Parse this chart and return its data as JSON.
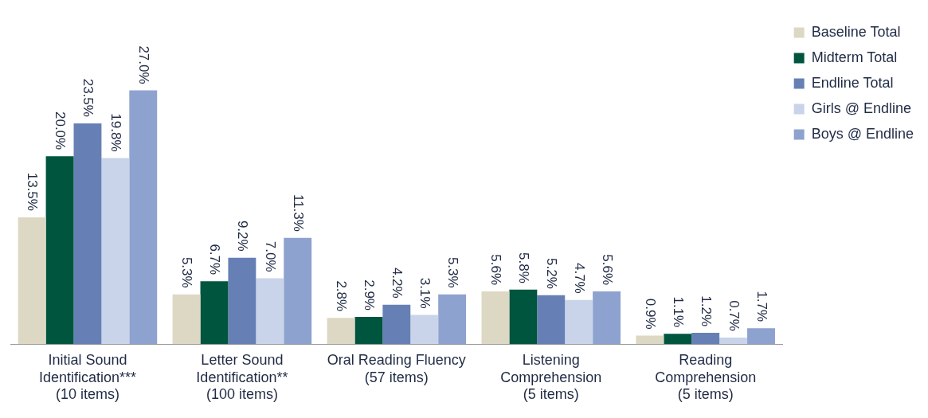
{
  "chart_data": {
    "type": "bar",
    "categories": [
      "Initial Sound\nIdentification***\n(10 items)",
      "Letter Sound\nIdentification**\n(100 items)",
      "Oral Reading Fluency\n(57 items)",
      "Listening\nComprehension\n(5 items)",
      "Reading\nComprehension\n(5 items)"
    ],
    "series": [
      {
        "name": "Baseline Total",
        "color": "#ddd8c4",
        "values": [
          13.5,
          5.3,
          2.8,
          5.6,
          0.9
        ],
        "value_labels": [
          "13.5%",
          "5.3%",
          "2.8%",
          "5.6%",
          "0.9%"
        ]
      },
      {
        "name": "Midterm Total",
        "color": "#00553f",
        "values": [
          20.0,
          6.7,
          2.9,
          5.8,
          1.1
        ],
        "value_labels": [
          "20.0%",
          "6.7%",
          "2.9%",
          "5.8%",
          "1.1%"
        ]
      },
      {
        "name": "Endline Total",
        "color": "#6680b5",
        "values": [
          23.5,
          9.2,
          4.2,
          5.2,
          1.2
        ],
        "value_labels": [
          "23.5%",
          "9.2%",
          "4.2%",
          "5.2%",
          "1.2%"
        ]
      },
      {
        "name": "Girls @ Endline",
        "color": "#c9d4ea",
        "values": [
          19.8,
          7.0,
          3.1,
          4.7,
          0.7
        ],
        "value_labels": [
          "19.8%",
          "7.0%",
          "3.1%",
          "4.7%",
          "0.7%"
        ]
      },
      {
        "name": "Boys @ Endline",
        "color": "#8ea2cf",
        "values": [
          27.0,
          11.3,
          5.3,
          5.6,
          1.7
        ],
        "value_labels": [
          "27.0%",
          "11.3%",
          "5.3%",
          "5.6%",
          "1.7%"
        ]
      }
    ],
    "legend": "top right",
    "grid": false
  }
}
